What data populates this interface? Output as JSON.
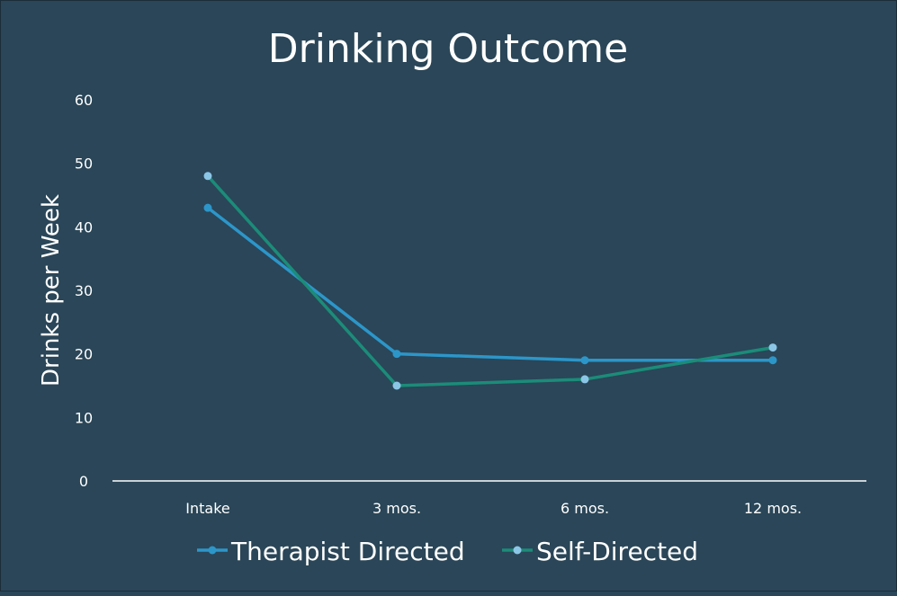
{
  "chart_data": {
    "type": "line",
    "title": "Drinking Outcome",
    "xlabel": "",
    "ylabel": "Drinks per Week",
    "categories": [
      "Intake",
      "3 mos.",
      "6 mos.",
      "12 mos."
    ],
    "ylim": [
      0,
      60
    ],
    "yticks": [
      0,
      10,
      20,
      30,
      40,
      50,
      60
    ],
    "grid": false,
    "legend_position": "bottom",
    "series": [
      {
        "name": "Therapist Directed",
        "values": [
          43,
          20,
          19,
          19
        ],
        "line_color": "#2c96c9",
        "marker_color": "#2c96c9"
      },
      {
        "name": "Self-Directed",
        "values": [
          48,
          15,
          16,
          21
        ],
        "line_color": "#1b8c79",
        "marker_color": "#8cc6e6"
      }
    ],
    "colors": {
      "background": "#2a4658",
      "text": "#ffffff",
      "axis": "#ffffff"
    }
  }
}
